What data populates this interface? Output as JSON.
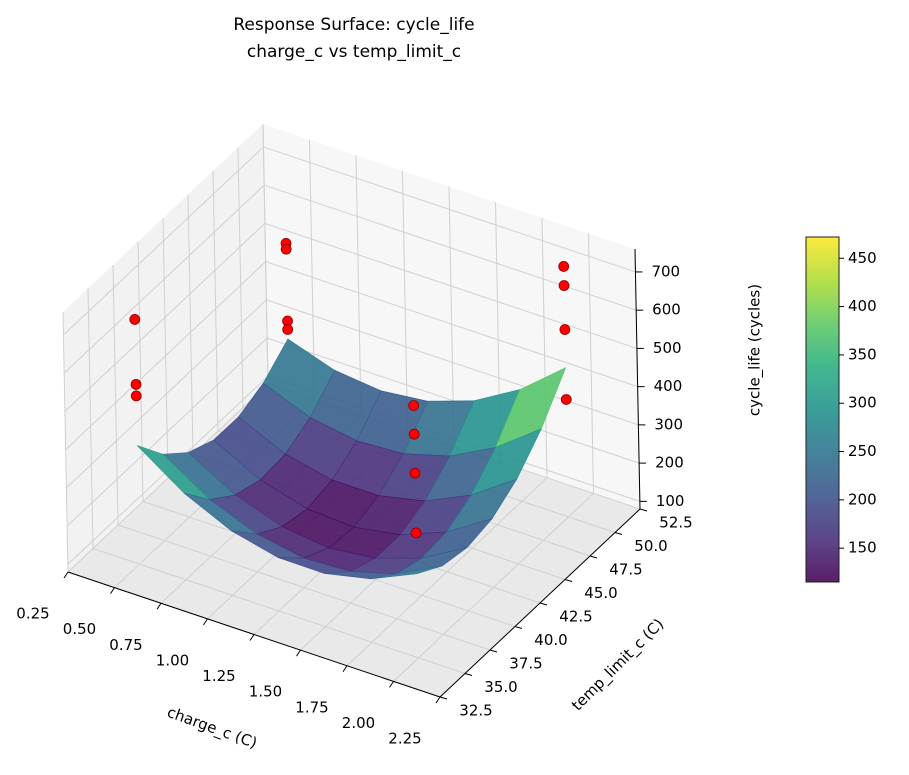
{
  "chart_data": {
    "type": "surface3d",
    "title": "Response Surface: cycle_life",
    "subtitle": "charge_c vs temp_limit_c",
    "x_label": "charge_c (C)",
    "y_label": "temp_limit_c (C)",
    "z_label": "cycle_life (cycles)",
    "xlim": [
      0.25,
      2.25
    ],
    "xticks": [
      0.25,
      {
        "value": 0.5,
        "label": "0.50"
      },
      0.75,
      {
        "value": 1,
        "label": "1.00"
      },
      1.25,
      {
        "value": 1.5,
        "label": "1.50"
      },
      1.75,
      {
        "value": 2,
        "label": "2.00"
      },
      2.25
    ],
    "ylim": [
      32.5,
      52.5
    ],
    "yticks": [
      32.5,
      {
        "value": 35,
        "label": "35.0"
      },
      37.5,
      {
        "value": 40,
        "label": "40.0"
      },
      42.5,
      {
        "value": 45,
        "label": "45.0"
      },
      47.5,
      {
        "value": 50,
        "label": "50.0"
      },
      52.5
    ],
    "zlim": [
      80,
      760
    ],
    "zticks": [
      100,
      200,
      300,
      400,
      500,
      600,
      700
    ],
    "grid": true,
    "surface": {
      "cmap": "viridis",
      "x": [
        0.5,
        0.75,
        1,
        1.25,
        1.5,
        1.75,
        2
      ],
      "y": [
        35,
        37.5,
        40,
        42.5,
        45,
        47.5,
        50
      ],
      "z": [
        [
          390,
          306,
          249,
          220,
          219,
          246,
          300
        ],
        [
          306,
          228,
          179,
          157,
          163,
          197,
          259
        ],
        [
          249,
          179,
          137,
          122,
          136,
          177,
          246
        ],
        [
          220,
          157,
          122,
          115,
          136,
          184,
          260
        ],
        [
          219,
          163,
          136,
          136,
          163,
          219,
          302
        ],
        [
          246,
          197,
          177,
          184,
          219,
          282,
          372
        ],
        [
          300,
          259,
          246,
          260,
          302,
          372,
          470
        ]
      ]
    },
    "colorbar": {
      "lim": [
        115,
        472
      ],
      "ticks": [
        150,
        200,
        250,
        300,
        350,
        400,
        450
      ]
    },
    "points": {
      "color": "#ff0000",
      "x": [
        0.5,
        0.5,
        0.5,
        0.5,
        0.5,
        0.5,
        0.5,
        2,
        2,
        2,
        2,
        2,
        2,
        2,
        2
      ],
      "y": [
        35,
        35,
        35,
        50,
        50,
        50,
        50,
        35,
        35,
        35,
        35,
        50,
        50,
        50,
        50
      ],
      "z": [
        720,
        550,
        520,
        550,
        535,
        347,
        325,
        740,
        665,
        563,
        407,
        735,
        685,
        570,
        387
      ]
    }
  }
}
